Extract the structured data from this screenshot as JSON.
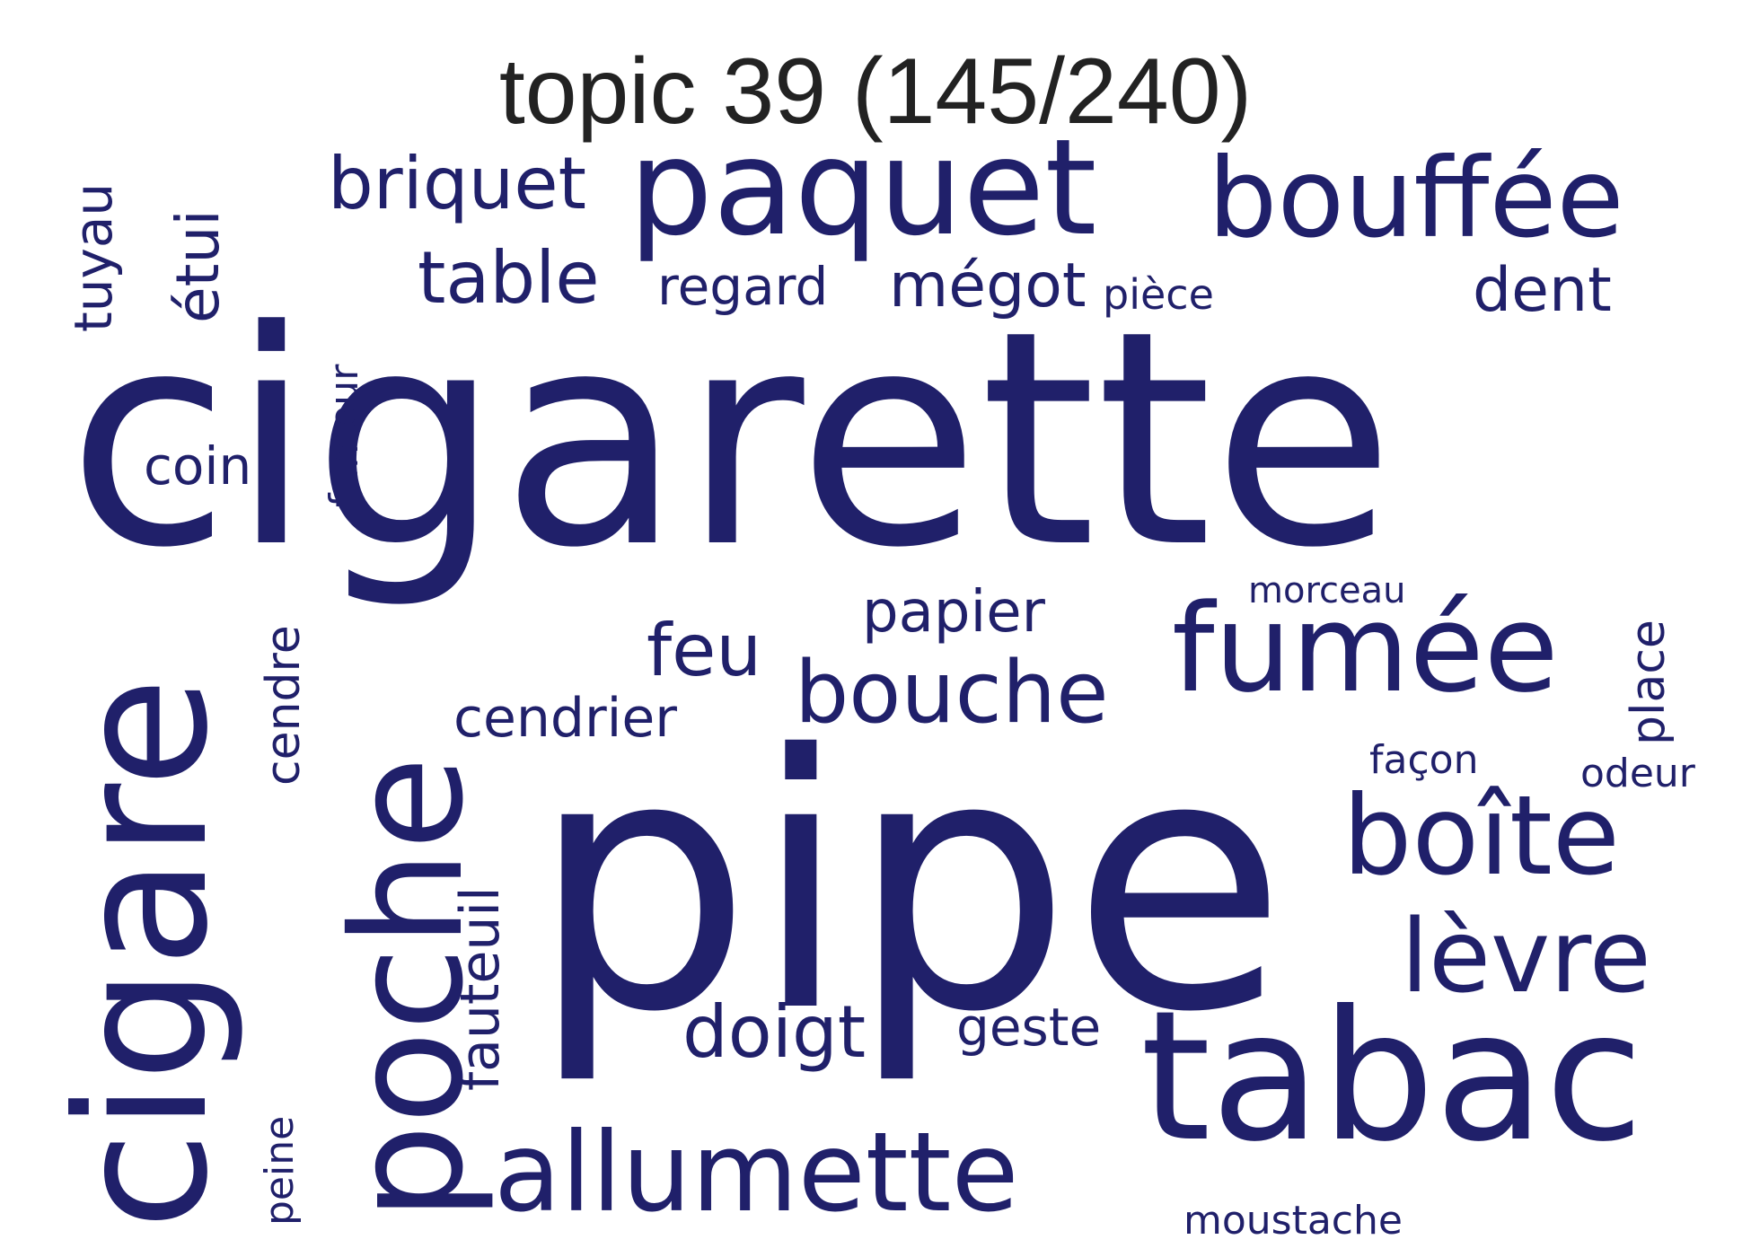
{
  "title": "topic 39 (145/240)",
  "word_color": "#20206a",
  "words": [
    {
      "text": "cigarette",
      "orientation": "horizontal"
    },
    {
      "text": "pipe",
      "orientation": "horizontal"
    },
    {
      "text": "cigare",
      "orientation": "vertical"
    },
    {
      "text": "poche",
      "orientation": "vertical"
    },
    {
      "text": "tabac",
      "orientation": "horizontal"
    },
    {
      "text": "paquet",
      "orientation": "horizontal"
    },
    {
      "text": "bouffée",
      "orientation": "horizontal"
    },
    {
      "text": "fumée",
      "orientation": "horizontal"
    },
    {
      "text": "allumette",
      "orientation": "horizontal"
    },
    {
      "text": "boîte",
      "orientation": "horizontal"
    },
    {
      "text": "lèvre",
      "orientation": "horizontal"
    },
    {
      "text": "bouche",
      "orientation": "horizontal"
    },
    {
      "text": "briquet",
      "orientation": "horizontal"
    },
    {
      "text": "table",
      "orientation": "horizontal"
    },
    {
      "text": "doigt",
      "orientation": "horizontal"
    },
    {
      "text": "feu",
      "orientation": "horizontal"
    },
    {
      "text": "mégot",
      "orientation": "horizontal"
    },
    {
      "text": "dent",
      "orientation": "horizontal"
    },
    {
      "text": "étui",
      "orientation": "vertical"
    },
    {
      "text": "regard",
      "orientation": "horizontal"
    },
    {
      "text": "papier",
      "orientation": "horizontal"
    },
    {
      "text": "cendrier",
      "orientation": "horizontal"
    },
    {
      "text": "fauteuil",
      "orientation": "vertical"
    },
    {
      "text": "cendre",
      "orientation": "vertical"
    },
    {
      "text": "tuyau",
      "orientation": "vertical"
    },
    {
      "text": "coin",
      "orientation": "horizontal"
    },
    {
      "text": "geste",
      "orientation": "horizontal"
    },
    {
      "text": "place",
      "orientation": "vertical"
    },
    {
      "text": "fumeur",
      "orientation": "vertical"
    },
    {
      "text": "pièce",
      "orientation": "horizontal"
    },
    {
      "text": "morceau",
      "orientation": "horizontal"
    },
    {
      "text": "façon",
      "orientation": "horizontal"
    },
    {
      "text": "odeur",
      "orientation": "horizontal"
    },
    {
      "text": "peine",
      "orientation": "vertical"
    },
    {
      "text": "moustache",
      "orientation": "horizontal"
    }
  ]
}
